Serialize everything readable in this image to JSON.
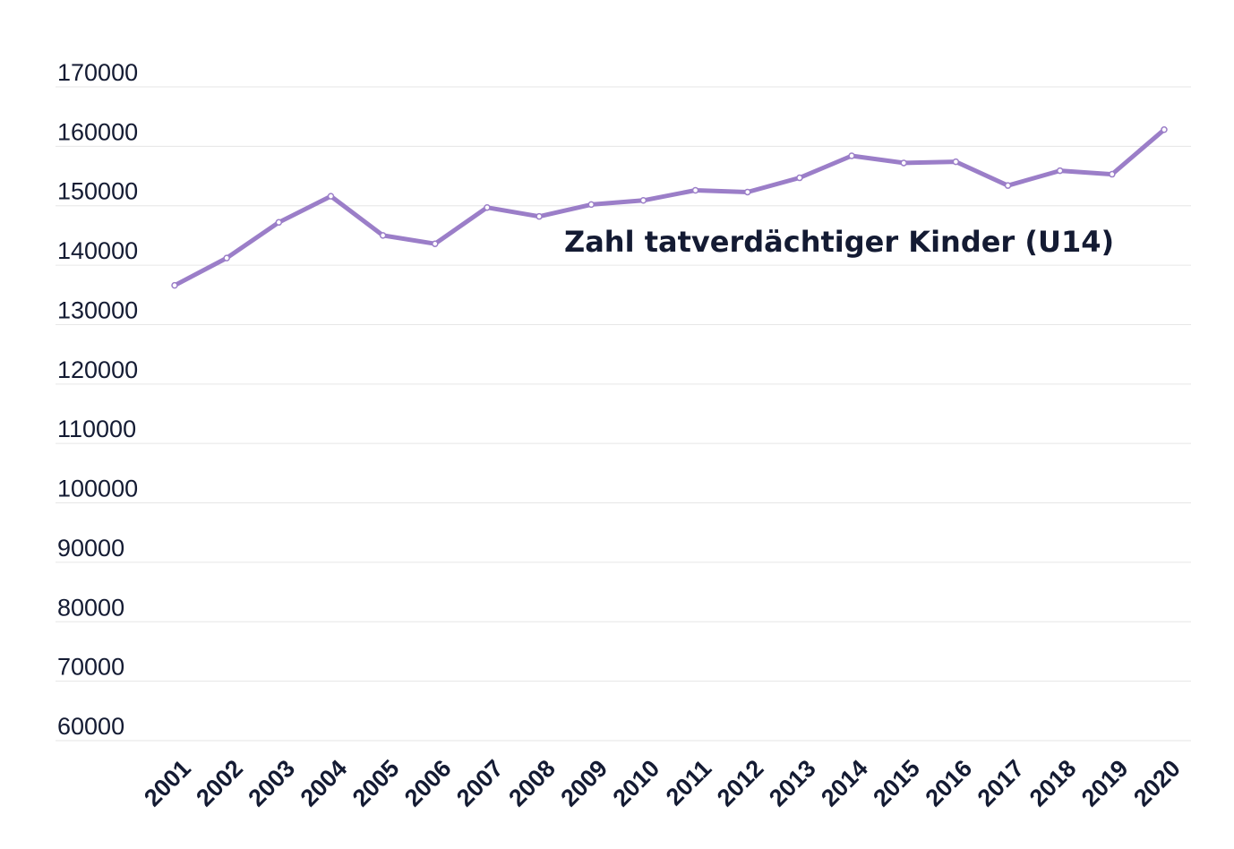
{
  "chart_data": {
    "type": "line",
    "title": "",
    "xlabel": "",
    "ylabel": "",
    "x": [
      "2001",
      "2002",
      "2003",
      "2004",
      "2005",
      "2006",
      "2007",
      "2008",
      "2009",
      "2010",
      "2011",
      "2012",
      "2013",
      "2014",
      "2015",
      "2016",
      "2017",
      "2018",
      "2019",
      "2020"
    ],
    "series": [
      {
        "name": "Zahl tatverdächtiger Kinder (U14)",
        "color": "#9b7ec8",
        "values": [
          136600,
          141200,
          147200,
          151600,
          145000,
          143600,
          149700,
          148200,
          150200,
          150900,
          152600,
          152300,
          154700,
          158400,
          157200,
          157400,
          153400,
          155900,
          155300,
          162800
        ]
      }
    ],
    "ylim": [
      60000,
      170000
    ],
    "yticks": [
      "170000",
      "160000",
      "150000",
      "140000",
      "130000",
      "120000",
      "110000",
      "100000",
      "90000",
      "80000",
      "70000",
      "60000"
    ],
    "grid": true,
    "series_label_text": "Zahl tatverdächtiger Kinder (U14)"
  }
}
